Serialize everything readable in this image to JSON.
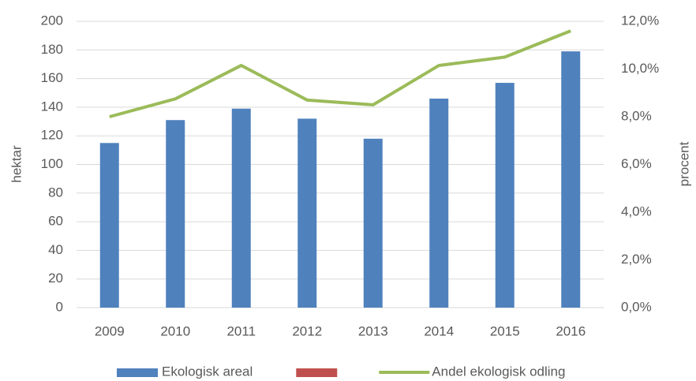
{
  "chart_data": {
    "type": "bar-line",
    "categories": [
      "2009",
      "2010",
      "2011",
      "2012",
      "2013",
      "2014",
      "2015",
      "2016"
    ],
    "ylabel": "hektar",
    "y2label": "procent",
    "ylim": [
      0,
      200
    ],
    "yticks": [
      0,
      20,
      40,
      60,
      80,
      100,
      120,
      140,
      160,
      180,
      200
    ],
    "y2lim": [
      0,
      12
    ],
    "y2ticks": [
      {
        "value": 0,
        "label": "0,0%"
      },
      {
        "value": 2,
        "label": "2,0%"
      },
      {
        "value": 4,
        "label": "4,0%"
      },
      {
        "value": 6,
        "label": "6,0%"
      },
      {
        "value": 8,
        "label": "8,0%"
      },
      {
        "value": 10,
        "label": "10,0%"
      },
      {
        "value": 12,
        "label": "12,0%"
      }
    ],
    "grid": true,
    "legend": "bottom",
    "series": [
      {
        "name": "Ekologisk areal",
        "type": "bar",
        "color": "#4f81bd",
        "values": [
          115,
          131,
          139,
          132,
          118,
          146,
          157,
          179
        ]
      },
      {
        "type": "bar",
        "color": "#c0504d",
        "values": [
          null,
          null,
          null,
          null,
          null,
          null,
          null,
          null
        ]
      },
      {
        "name": "Andel ekologisk odling",
        "type": "line",
        "axis": "y2",
        "color": "#9bbb59",
        "values": [
          8.0,
          8.75,
          10.15,
          8.7,
          8.5,
          10.15,
          10.5,
          11.6
        ]
      }
    ]
  }
}
